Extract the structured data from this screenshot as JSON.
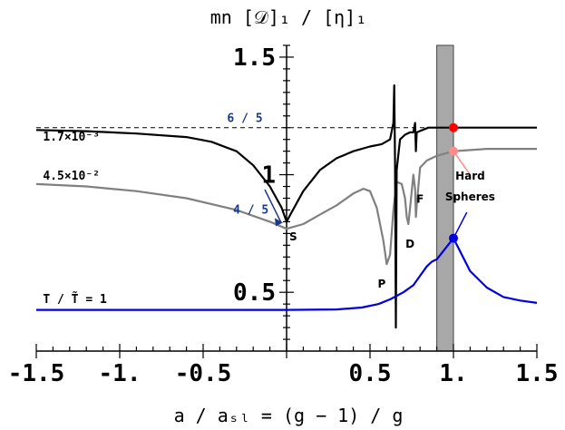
{
  "chart_data": {
    "type": "line",
    "title": "mn [𝒟]₁ / [η]₁",
    "xlabel": "a / aₛₗ = (g − 1) / g",
    "ylabel": "",
    "xlim": [
      -1.5,
      1.5
    ],
    "ylim": [
      0.25,
      1.55
    ],
    "x_tick_labels": [
      {
        "value": -1.5,
        "label": "-1.5"
      },
      {
        "value": -1.0,
        "label": "-1."
      },
      {
        "value": -0.5,
        "label": "-0.5"
      },
      {
        "value": 0.5,
        "label": "0.5"
      },
      {
        "value": 1.0,
        "label": "1."
      },
      {
        "value": 1.5,
        "label": "1.5"
      }
    ],
    "y_tick_labels": [
      {
        "value": 1.5,
        "label": "1.5"
      },
      {
        "value": 1.0,
        "label": "1"
      },
      {
        "value": 0.5,
        "label": "0.5"
      }
    ],
    "grid": false,
    "series": [
      {
        "name": "1.7×10⁻³",
        "color": "#000000",
        "points": [
          [
            -1.5,
            1.19
          ],
          [
            -1.2,
            1.185
          ],
          [
            -0.9,
            1.175
          ],
          [
            -0.6,
            1.16
          ],
          [
            -0.45,
            1.14
          ],
          [
            -0.3,
            1.1
          ],
          [
            -0.2,
            1.04
          ],
          [
            -0.1,
            0.95
          ],
          [
            -0.03,
            0.86
          ],
          [
            0,
            0.8
          ],
          [
            0.03,
            0.84
          ],
          [
            0.1,
            0.93
          ],
          [
            0.2,
            1.02
          ],
          [
            0.3,
            1.07
          ],
          [
            0.4,
            1.1
          ],
          [
            0.5,
            1.12
          ],
          [
            0.57,
            1.13
          ],
          [
            0.62,
            1.15
          ],
          [
            0.64,
            1.22
          ],
          [
            0.645,
            1.38
          ],
          [
            0.65,
            1.05
          ],
          [
            0.655,
            0.35
          ],
          [
            0.66,
            1.02
          ],
          [
            0.68,
            1.15
          ],
          [
            0.71,
            1.17
          ],
          [
            0.74,
            1.18
          ],
          [
            0.76,
            1.18
          ],
          [
            0.77,
            1.22
          ],
          [
            0.775,
            1.1
          ],
          [
            0.78,
            1.18
          ],
          [
            0.85,
            1.2
          ],
          [
            1.0,
            1.2
          ],
          [
            1.5,
            1.2
          ]
        ]
      },
      {
        "name": "4.5×10⁻²",
        "color": "#808080",
        "points": [
          [
            -1.5,
            0.96
          ],
          [
            -1.2,
            0.95
          ],
          [
            -0.9,
            0.93
          ],
          [
            -0.6,
            0.9
          ],
          [
            -0.3,
            0.85
          ],
          [
            -0.1,
            0.8
          ],
          [
            0,
            0.77
          ],
          [
            0.1,
            0.79
          ],
          [
            0.2,
            0.83
          ],
          [
            0.3,
            0.87
          ],
          [
            0.4,
            0.92
          ],
          [
            0.46,
            0.94
          ],
          [
            0.5,
            0.93
          ],
          [
            0.54,
            0.86
          ],
          [
            0.58,
            0.72
          ],
          [
            0.6,
            0.62
          ],
          [
            0.62,
            0.66
          ],
          [
            0.64,
            0.85
          ],
          [
            0.66,
            0.97
          ],
          [
            0.69,
            0.96
          ],
          [
            0.71,
            0.9
          ],
          [
            0.72,
            0.82
          ],
          [
            0.73,
            0.79
          ],
          [
            0.74,
            0.86
          ],
          [
            0.76,
            1.0
          ],
          [
            0.77,
            0.94
          ],
          [
            0.775,
            0.82
          ],
          [
            0.78,
            0.87
          ],
          [
            0.8,
            1.03
          ],
          [
            0.84,
            1.06
          ],
          [
            0.9,
            1.08
          ],
          [
            1.0,
            1.1
          ],
          [
            1.2,
            1.11
          ],
          [
            1.5,
            1.11
          ]
        ]
      },
      {
        "name": "T / T̃ = 1",
        "color": "#0000dd",
        "points": [
          [
            -1.5,
            0.425
          ],
          [
            -0.8,
            0.425
          ],
          [
            -0.3,
            0.425
          ],
          [
            0,
            0.425
          ],
          [
            0.3,
            0.427
          ],
          [
            0.45,
            0.435
          ],
          [
            0.55,
            0.45
          ],
          [
            0.62,
            0.47
          ],
          [
            0.7,
            0.5
          ],
          [
            0.76,
            0.53
          ],
          [
            0.8,
            0.57
          ],
          [
            0.84,
            0.61
          ],
          [
            0.87,
            0.63
          ],
          [
            0.9,
            0.64
          ],
          [
            1.0,
            0.73
          ],
          [
            1.05,
            0.66
          ],
          [
            1.1,
            0.59
          ],
          [
            1.2,
            0.52
          ],
          [
            1.3,
            0.48
          ],
          [
            1.4,
            0.465
          ],
          [
            1.5,
            0.455
          ]
        ]
      }
    ],
    "reference_line": {
      "y": 1.2,
      "style": "dashed",
      "label": "6 / 5"
    },
    "shaded_band": {
      "x_from": 0.9,
      "x_to": 1.0,
      "color": "#a8a8a8"
    },
    "markers": [
      {
        "x": 1.0,
        "y": 1.2,
        "color": "#ff0000"
      },
      {
        "x": 1.0,
        "y": 1.1,
        "color": "#ff8c8c"
      },
      {
        "x": 1.0,
        "y": 0.73,
        "color": "#0000dd"
      }
    ],
    "annotations": [
      {
        "text": "1.7×10⁻³",
        "x": -1.46,
        "y": 1.145,
        "color": "#000000"
      },
      {
        "text": "4.5×10⁻²",
        "x": -1.46,
        "y": 0.98,
        "color": "#000000"
      },
      {
        "text": "T / T̃ = 1",
        "x": -1.46,
        "y": 0.455,
        "color": "#000000"
      },
      {
        "text": "4 / 5",
        "x": -0.32,
        "y": 0.835,
        "color": "#1a3a8c"
      },
      {
        "text": "S",
        "x": 0.04,
        "y": 0.72,
        "color": "#000000"
      },
      {
        "text": "P",
        "x": 0.57,
        "y": 0.52,
        "color": "#000000"
      },
      {
        "text": "D",
        "x": 0.74,
        "y": 0.69,
        "color": "#000000"
      },
      {
        "text": "F",
        "x": 0.8,
        "y": 0.88,
        "color": "#000000"
      },
      {
        "text": "Hard",
        "x": 1.1,
        "y": 0.98,
        "color": "#000000"
      },
      {
        "text": "Spheres",
        "x": 1.1,
        "y": 0.89,
        "color": "#000000"
      }
    ]
  }
}
